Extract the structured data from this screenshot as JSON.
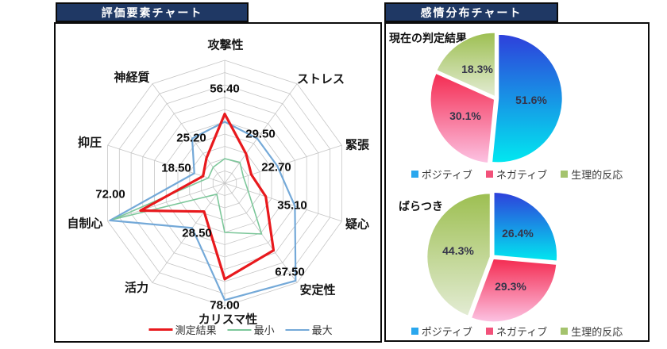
{
  "panels": {
    "radar": {
      "title": "評価要素チャート"
    },
    "emotion": {
      "title": "感情分布チャート"
    }
  },
  "colors": {
    "header_bg": "#1f3864",
    "header_text": "#ffffff",
    "border": "#0b0b0b",
    "grid": "#c6c6c6",
    "measured_red": "#e8191d",
    "min_green": "#7cc79a",
    "max_blue": "#74a9d8",
    "legend_squares": [
      "#2aa7ee",
      "#f2527a",
      "#a4c36d"
    ],
    "pie_gradients": [
      [
        "#2e3fdb",
        "#01e8f0"
      ],
      [
        "#f42b51",
        "#fcc3e3"
      ],
      [
        "#9dbf51",
        "#e3ecd4"
      ]
    ]
  },
  "chart_data": [
    {
      "type": "radar",
      "title": "評価要素チャート",
      "categories": [
        "攻撃性",
        "ストレス",
        "緊張",
        "疑心",
        "安定性",
        "カリスマ性",
        "活力",
        "自制心",
        "抑圧",
        "神経質"
      ],
      "axis_range": [
        0,
        100
      ],
      "rings": 10,
      "grid": true,
      "series": [
        {
          "name": "最大",
          "color": "#74a9d8",
          "width": 2.2,
          "values": [
            50,
            45,
            45,
            60,
            98,
            95,
            45,
            98,
            26,
            45
          ]
        },
        {
          "name": "最小",
          "color": "#7cc79a",
          "width": 1.6,
          "values": [
            20,
            21,
            16,
            20,
            51,
            40,
            11,
            95,
            14,
            16
          ]
        },
        {
          "name": "測定結果",
          "color": "#e8191d",
          "width": 3.2,
          "values": [
            56.4,
            29.5,
            22.7,
            35.1,
            67.5,
            78.0,
            28.5,
            72.0,
            18.5,
            25.2
          ]
        }
      ],
      "value_labels": [
        "56.40",
        "29.50",
        "22.70",
        "35.10",
        "67.50",
        "78.00",
        "28.50",
        "72.00",
        "18.50",
        "25.20"
      ],
      "legend": [
        "測定結果",
        "最小",
        "最大"
      ],
      "legend_position": "bottom"
    },
    {
      "type": "pie",
      "title": "現在の判定結果",
      "labels": [
        "ポジティブ",
        "ネガティブ",
        "生理的反応"
      ],
      "values": [
        51.6,
        30.1,
        18.3
      ],
      "value_labels": [
        "51.6%",
        "30.1%",
        "18.3%"
      ],
      "start_angle_deg": 0,
      "direction": "clockwise",
      "legend_position": "bottom"
    },
    {
      "type": "pie",
      "title": "ばらつき",
      "labels": [
        "ポジティブ",
        "ネガティブ",
        "生理的反応"
      ],
      "values": [
        26.4,
        29.3,
        44.3
      ],
      "value_labels": [
        "26.4%",
        "29.3%",
        "44.3%"
      ],
      "start_angle_deg": 0,
      "direction": "clockwise",
      "legend_position": "bottom"
    }
  ]
}
